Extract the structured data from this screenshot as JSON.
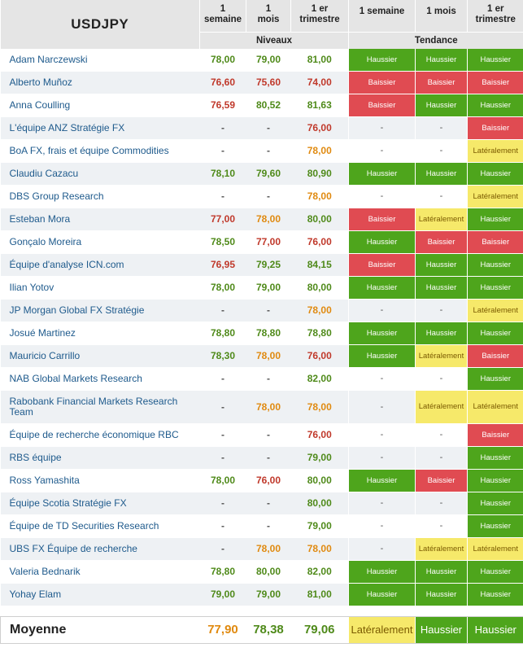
{
  "title": "USDJPY",
  "headers": {
    "col1": [
      "1",
      "semaine"
    ],
    "col2": [
      "1",
      "mois"
    ],
    "col3": [
      "1 er",
      "trimestre"
    ],
    "col4": "1 semaine",
    "col5": "1 mois",
    "col6": [
      "1 er",
      "trimestre"
    ],
    "group_levels": "Niveaux",
    "group_trend": "Tendance"
  },
  "rows": [
    {
      "name": "Adam Narczewski",
      "levels": [
        "78,00",
        "79,00",
        "81,00"
      ],
      "level_colors": [
        "green",
        "green",
        "green"
      ],
      "trends": [
        "Haussier",
        "Haussier",
        "Haussier"
      ]
    },
    {
      "name": "Alberto Muñoz",
      "levels": [
        "76,60",
        "75,60",
        "74,00"
      ],
      "level_colors": [
        "red",
        "red",
        "red"
      ],
      "trends": [
        "Baissier",
        "Baissier",
        "Baissier"
      ]
    },
    {
      "name": "Anna Coulling",
      "levels": [
        "76,59",
        "80,52",
        "81,63"
      ],
      "level_colors": [
        "red",
        "green",
        "green"
      ],
      "trends": [
        "Baissier",
        "Haussier",
        "Haussier"
      ]
    },
    {
      "name": "L'équipe ANZ Stratégie FX",
      "levels": [
        "-",
        "-",
        "76,00"
      ],
      "level_colors": [
        "dash",
        "dash",
        "red"
      ],
      "trends": [
        "-",
        "-",
        "Baissier"
      ]
    },
    {
      "name": "BoA FX, frais et équipe Commodities",
      "levels": [
        "-",
        "-",
        "78,00"
      ],
      "level_colors": [
        "dash",
        "dash",
        "orange"
      ],
      "trends": [
        "-",
        "-",
        "Latéralement"
      ]
    },
    {
      "name": "Claudiu Cazacu",
      "levels": [
        "78,10",
        "79,60",
        "80,90"
      ],
      "level_colors": [
        "green",
        "green",
        "green"
      ],
      "trends": [
        "Haussier",
        "Haussier",
        "Haussier"
      ]
    },
    {
      "name": "DBS Group Research",
      "levels": [
        "-",
        "-",
        "78,00"
      ],
      "level_colors": [
        "dash",
        "dash",
        "orange"
      ],
      "trends": [
        "-",
        "-",
        "Latéralement"
      ]
    },
    {
      "name": "Esteban Mora",
      "levels": [
        "77,00",
        "78,00",
        "80,00"
      ],
      "level_colors": [
        "red",
        "orange",
        "green"
      ],
      "trends": [
        "Baissier",
        "Latéralement",
        "Haussier"
      ]
    },
    {
      "name": "Gonçalo Moreira",
      "levels": [
        "78,50",
        "77,00",
        "76,00"
      ],
      "level_colors": [
        "green",
        "red",
        "red"
      ],
      "trends": [
        "Haussier",
        "Baissier",
        "Baissier"
      ]
    },
    {
      "name": "Équipe d'analyse ICN.com",
      "levels": [
        "76,95",
        "79,25",
        "84,15"
      ],
      "level_colors": [
        "red",
        "green",
        "green"
      ],
      "trends": [
        "Baissier",
        "Haussier",
        "Haussier"
      ]
    },
    {
      "name": "Ilian Yotov",
      "levels": [
        "78,00",
        "79,00",
        "80,00"
      ],
      "level_colors": [
        "green",
        "green",
        "green"
      ],
      "trends": [
        "Haussier",
        "Haussier",
        "Haussier"
      ]
    },
    {
      "name": "JP Morgan Global FX Stratégie",
      "levels": [
        "-",
        "-",
        "78,00"
      ],
      "level_colors": [
        "dash",
        "dash",
        "orange"
      ],
      "trends": [
        "-",
        "-",
        "Latéralement"
      ]
    },
    {
      "name": "Josué Martinez",
      "levels": [
        "78,80",
        "78,80",
        "78,80"
      ],
      "level_colors": [
        "green",
        "green",
        "green"
      ],
      "trends": [
        "Haussier",
        "Haussier",
        "Haussier"
      ]
    },
    {
      "name": "Mauricio Carrillo",
      "levels": [
        "78,30",
        "78,00",
        "76,00"
      ],
      "level_colors": [
        "green",
        "orange",
        "red"
      ],
      "trends": [
        "Haussier",
        "Latéralement",
        "Baissier"
      ]
    },
    {
      "name": "NAB Global Markets Research",
      "levels": [
        "-",
        "-",
        "82,00"
      ],
      "level_colors": [
        "dash",
        "dash",
        "green"
      ],
      "trends": [
        "-",
        "-",
        "Haussier"
      ]
    },
    {
      "name": "Rabobank Financial Markets Research Team",
      "levels": [
        "-",
        "78,00",
        "78,00"
      ],
      "level_colors": [
        "dash",
        "orange",
        "orange"
      ],
      "trends": [
        "-",
        "Latéralement",
        "Latéralement"
      ],
      "tall": true
    },
    {
      "name": "Équipe de recherche économique RBC",
      "levels": [
        "-",
        "-",
        "76,00"
      ],
      "level_colors": [
        "dash",
        "dash",
        "red"
      ],
      "trends": [
        "-",
        "-",
        "Baissier"
      ]
    },
    {
      "name": "RBS équipe",
      "levels": [
        "-",
        "-",
        "79,00"
      ],
      "level_colors": [
        "dash",
        "dash",
        "green"
      ],
      "trends": [
        "-",
        "-",
        "Haussier"
      ]
    },
    {
      "name": "Ross Yamashita",
      "levels": [
        "78,00",
        "76,00",
        "80,00"
      ],
      "level_colors": [
        "green",
        "red",
        "green"
      ],
      "trends": [
        "Haussier",
        "Baissier",
        "Haussier"
      ]
    },
    {
      "name": "Équipe Scotia Stratégie FX",
      "levels": [
        "-",
        "-",
        "80,00"
      ],
      "level_colors": [
        "dash",
        "dash",
        "green"
      ],
      "trends": [
        "-",
        "-",
        "Haussier"
      ]
    },
    {
      "name": "Équipe de TD Securities Research",
      "levels": [
        "-",
        "-",
        "79,00"
      ],
      "level_colors": [
        "dash",
        "dash",
        "green"
      ],
      "trends": [
        "-",
        "-",
        "Haussier"
      ]
    },
    {
      "name": "UBS FX Équipe de recherche",
      "levels": [
        "-",
        "78,00",
        "78,00"
      ],
      "level_colors": [
        "dash",
        "orange",
        "orange"
      ],
      "trends": [
        "-",
        "Latéralement",
        "Latéralement"
      ]
    },
    {
      "name": "Valeria Bednarik",
      "levels": [
        "78,80",
        "80,00",
        "82,00"
      ],
      "level_colors": [
        "green",
        "green",
        "green"
      ],
      "trends": [
        "Haussier",
        "Haussier",
        "Haussier"
      ]
    },
    {
      "name": "Yohay Elam",
      "levels": [
        "79,00",
        "79,00",
        "81,00"
      ],
      "level_colors": [
        "green",
        "green",
        "green"
      ],
      "trends": [
        "Haussier",
        "Haussier",
        "Haussier"
      ]
    }
  ],
  "average": {
    "label": "Moyenne",
    "levels": [
      "77,90",
      "78,38",
      "79,06"
    ],
    "level_colors": [
      "orange",
      "green",
      "green"
    ],
    "trends": [
      "Latéralement",
      "Haussier",
      "Haussier"
    ]
  },
  "colors": {
    "haussier": "#4ea51c",
    "baissier": "#e04b52",
    "lateralement": "#f6e96a",
    "header_bg": "#e5e5e5",
    "row_alt_bg": "#eef1f4",
    "name_text": "#1e5a8c"
  }
}
